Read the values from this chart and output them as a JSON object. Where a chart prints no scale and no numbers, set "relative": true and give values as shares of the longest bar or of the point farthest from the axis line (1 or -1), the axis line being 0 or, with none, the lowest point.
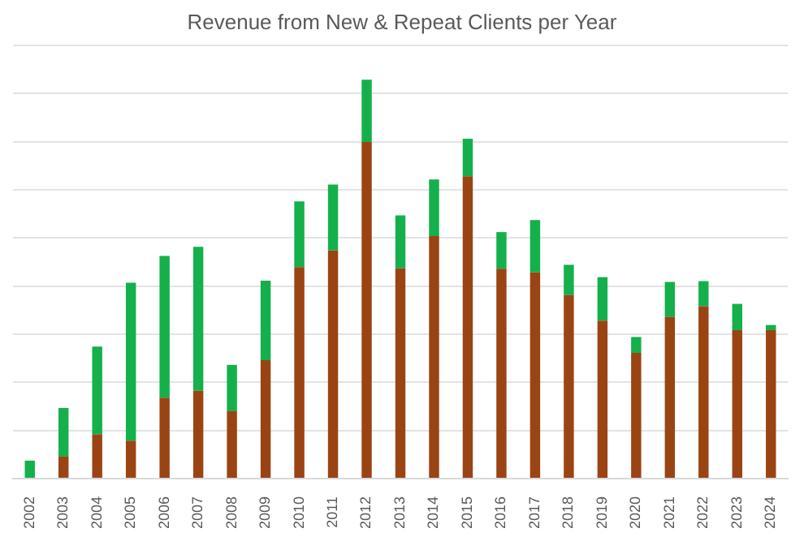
{
  "chart_data": {
    "type": "bar",
    "title": "Revenue from New & Repeat Clients per Year",
    "categories": [
      "2002",
      "2003",
      "2004",
      "2005",
      "2006",
      "2007",
      "2008",
      "2009",
      "2010",
      "2011",
      "2012",
      "2013",
      "2014",
      "2015",
      "2016",
      "2017",
      "2018",
      "2019",
      "2020",
      "2021",
      "2022",
      "2023",
      "2024"
    ],
    "stacked": true,
    "relative": true,
    "grid": "y",
    "legend": false,
    "series": [
      {
        "color": "#9a4414",
        "values": [
          0,
          0.055,
          0.111,
          0.095,
          0.203,
          0.22,
          0.169,
          0.297,
          0.53,
          0.572,
          0.844,
          0.527,
          0.608,
          0.758,
          0.526,
          0.517,
          0.46,
          0.396,
          0.315,
          0.405,
          0.432,
          0.372,
          0.372
        ]
      },
      {
        "color": "#14b04c",
        "values": [
          0.045,
          0.122,
          0.22,
          0.396,
          0.355,
          0.361,
          0.116,
          0.199,
          0.165,
          0.165,
          0.156,
          0.133,
          0.142,
          0.094,
          0.092,
          0.131,
          0.076,
          0.109,
          0.04,
          0.088,
          0.063,
          0.066,
          0.013
        ]
      }
    ]
  }
}
